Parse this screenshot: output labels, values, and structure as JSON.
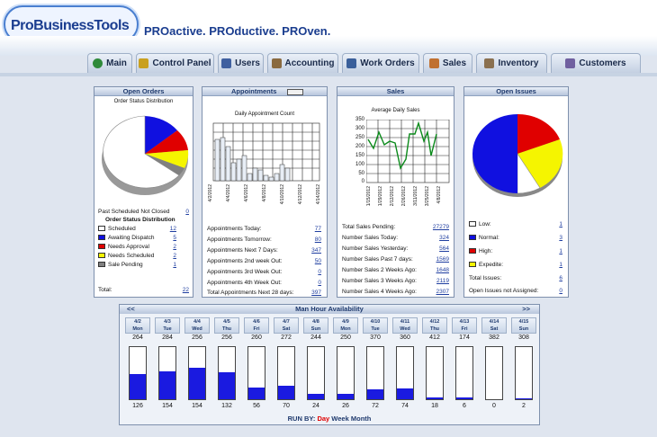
{
  "header": {
    "logo": "ProBusinessTools",
    "tagline": "PROactive. PROductive. PROven."
  },
  "tabs": [
    {
      "label": "Main",
      "color": "#2f8a3a"
    },
    {
      "label": "Control Panel",
      "color": "#c9a020"
    },
    {
      "label": "Users",
      "color": "#4060a0"
    },
    {
      "label": "Accounting",
      "color": "#8a6a40"
    },
    {
      "label": "Work Orders",
      "color": "#3a5f9a"
    },
    {
      "label": "Sales",
      "color": "#c07030"
    },
    {
      "label": "Inventory",
      "color": "#8a7050"
    },
    {
      "label": "Customers",
      "color": "#7060a0"
    }
  ],
  "open_orders": {
    "title": "Open Orders",
    "chart_title": "Order Status Distribution",
    "past_label": "Past Scheduled Not Closed",
    "past_value": "0",
    "dist_title": "Order Status Distribution",
    "items": [
      {
        "label": "Scheduled",
        "value": "12",
        "color": "#ffffff"
      },
      {
        "label": "Awaiting Dispatch",
        "value": "5",
        "color": "#1010e0"
      },
      {
        "label": "Needs Approval",
        "value": "2",
        "color": "#e00000"
      },
      {
        "label": "Needs Scheduled",
        "value": "2",
        "color": "#f5f500"
      },
      {
        "label": "Sale Pending",
        "value": "1",
        "color": "#808080"
      }
    ],
    "total_label": "Total:",
    "total_value": "22"
  },
  "appointments": {
    "title": "Appointments",
    "chart_title": "Daily Appointment Count",
    "x_ticks": [
      "4/2/2012",
      "4/4/2012",
      "4/6/2012",
      "4/8/2012",
      "4/10/2012",
      "4/12/2012",
      "4/14/2012"
    ],
    "rows": [
      {
        "label": "Appointments Today:",
        "value": "77"
      },
      {
        "label": "Appointments Tomorrow:",
        "value": "80"
      },
      {
        "label": "Appointments Next 7 Days:",
        "value": "347"
      },
      {
        "label": "Appointments 2nd week Out:",
        "value": "50"
      },
      {
        "label": "Appointments 3rd Week Out:",
        "value": "0"
      },
      {
        "label": "Appointments 4th Week Out:",
        "value": "0"
      },
      {
        "label": "Total Appointments Next 28 days:",
        "value": "397"
      }
    ]
  },
  "sales": {
    "title": "Sales",
    "chart_title": "Average Daily Sales",
    "y_ticks": [
      "350",
      "300",
      "250",
      "200",
      "150",
      "100",
      "50",
      "0"
    ],
    "x_ticks": [
      "1/15/2012",
      "1/29/2012",
      "2/12/2012",
      "2/26/2012",
      "3/11/2012",
      "3/25/2012",
      "4/8/2012"
    ],
    "rows": [
      {
        "label": "Total Sales Pending:",
        "value": "27279"
      },
      {
        "label": "Number Sales Today:",
        "value": "324"
      },
      {
        "label": "Number Sales Yesterday:",
        "value": "564"
      },
      {
        "label": "Number Sales Past 7 days:",
        "value": "1569"
      },
      {
        "label": "Number Sales 2 Weeks Ago:",
        "value": "1648"
      },
      {
        "label": "Number Sales 3 Weeks Ago:",
        "value": "2119"
      },
      {
        "label": "Number Sales 4 Weeks Ago:",
        "value": "2307"
      }
    ]
  },
  "open_issues": {
    "title": "Open Issues",
    "items": [
      {
        "label": "Low:",
        "value": "1",
        "color": "#ffffff"
      },
      {
        "label": "Normal:",
        "value": "3",
        "color": "#1010e0"
      },
      {
        "label": "High:",
        "value": "1",
        "color": "#e00000"
      },
      {
        "label": "Expedite:",
        "value": "1",
        "color": "#f5f500"
      }
    ],
    "total_label": "Total Issues:",
    "total_value": "6",
    "unassigned_label": "Open Issues not Assigned:",
    "unassigned_value": "0"
  },
  "man_hour": {
    "title": "Man Hour Availability",
    "prev": "<<",
    "next": ">>",
    "run_by": "RUN BY:",
    "modes": [
      "Day",
      "Week",
      "Month"
    ],
    "days": [
      {
        "date": "4/2",
        "dow": "Mon",
        "cap": "264",
        "used": "126",
        "frac": 0.48
      },
      {
        "date": "4/3",
        "dow": "Tue",
        "cap": "284",
        "used": "154",
        "frac": 0.54
      },
      {
        "date": "4/4",
        "dow": "Wed",
        "cap": "256",
        "used": "154",
        "frac": 0.6
      },
      {
        "date": "4/5",
        "dow": "Thu",
        "cap": "256",
        "used": "132",
        "frac": 0.52
      },
      {
        "date": "4/6",
        "dow": "Fri",
        "cap": "260",
        "used": "56",
        "frac": 0.22
      },
      {
        "date": "4/7",
        "dow": "Sat",
        "cap": "272",
        "used": "70",
        "frac": 0.26
      },
      {
        "date": "4/8",
        "dow": "Sun",
        "cap": "244",
        "used": "24",
        "frac": 0.1
      },
      {
        "date": "4/9",
        "dow": "Mon",
        "cap": "250",
        "used": "26",
        "frac": 0.1
      },
      {
        "date": "4/10",
        "dow": "Tue",
        "cap": "370",
        "used": "72",
        "frac": 0.19
      },
      {
        "date": "4/11",
        "dow": "Wed",
        "cap": "360",
        "used": "74",
        "frac": 0.21
      },
      {
        "date": "4/12",
        "dow": "Thu",
        "cap": "412",
        "used": "18",
        "frac": 0.04
      },
      {
        "date": "4/13",
        "dow": "Fri",
        "cap": "174",
        "used": "6",
        "frac": 0.03
      },
      {
        "date": "4/14",
        "dow": "Sat",
        "cap": "382",
        "used": "0",
        "frac": 0
      },
      {
        "date": "4/15",
        "dow": "Sun",
        "cap": "308",
        "used": "2",
        "frac": 0.01
      }
    ]
  }
}
